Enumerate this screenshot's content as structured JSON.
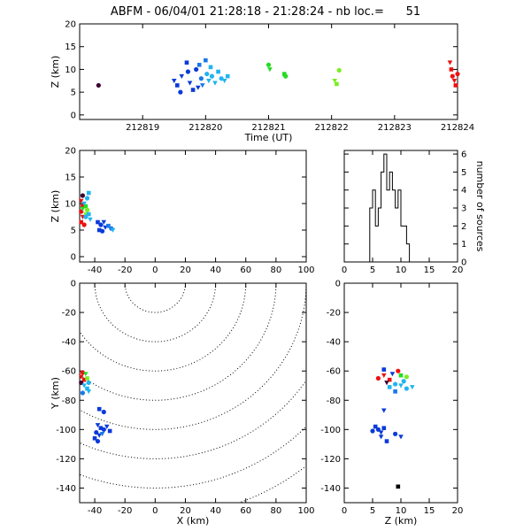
{
  "title": "ABFM - 06/04/01 21:28:18 - 21:28:24 - nb loc.=      51",
  "palette": {
    "purple": "#3a0030",
    "blue": "#0a3ad8",
    "midblue": "#1a78e8",
    "cyan": "#20b4f0",
    "green": "#22dd22",
    "lime": "#7aee22",
    "red": "#ee1010",
    "black": "#000000"
  },
  "chart_data": [
    {
      "id": "time-z",
      "type": "scatter",
      "xlabel": "Time (UT)",
      "ylabel": "Z (km)",
      "xlim": [
        212818,
        212824
      ],
      "ylim": [
        -1,
        20
      ],
      "xticks": [
        212819,
        212820,
        212821,
        212822,
        212823,
        212824
      ],
      "xtick_labels": [
        "212819",
        "212820",
        "212821",
        "212822",
        "212823",
        "212824"
      ],
      "yticks": [
        0,
        5,
        10,
        15,
        20
      ],
      "points": [
        {
          "x": 212818.3,
          "y": 6.5,
          "c": "purple"
        },
        {
          "x": 212819.5,
          "y": 7.5,
          "c": "blue"
        },
        {
          "x": 212819.55,
          "y": 6.5,
          "c": "blue"
        },
        {
          "x": 212819.6,
          "y": 5.0,
          "c": "blue"
        },
        {
          "x": 212819.62,
          "y": 8.5,
          "c": "blue"
        },
        {
          "x": 212819.7,
          "y": 11.5,
          "c": "blue"
        },
        {
          "x": 212819.72,
          "y": 9.5,
          "c": "blue"
        },
        {
          "x": 212819.75,
          "y": 7.0,
          "c": "blue"
        },
        {
          "x": 212819.8,
          "y": 5.5,
          "c": "blue"
        },
        {
          "x": 212819.85,
          "y": 10.0,
          "c": "blue"
        },
        {
          "x": 212819.88,
          "y": 6.0,
          "c": "blue"
        },
        {
          "x": 212819.9,
          "y": 11.0,
          "c": "midblue"
        },
        {
          "x": 212819.93,
          "y": 8.0,
          "c": "midblue"
        },
        {
          "x": 212819.95,
          "y": 6.5,
          "c": "midblue"
        },
        {
          "x": 212820.0,
          "y": 12.0,
          "c": "midblue"
        },
        {
          "x": 212820.02,
          "y": 9.0,
          "c": "cyan"
        },
        {
          "x": 212820.05,
          "y": 7.5,
          "c": "cyan"
        },
        {
          "x": 212820.08,
          "y": 10.5,
          "c": "cyan"
        },
        {
          "x": 212820.1,
          "y": 8.5,
          "c": "cyan"
        },
        {
          "x": 212820.15,
          "y": 7.0,
          "c": "cyan"
        },
        {
          "x": 212820.2,
          "y": 9.5,
          "c": "cyan"
        },
        {
          "x": 212820.25,
          "y": 8.0,
          "c": "cyan"
        },
        {
          "x": 212820.3,
          "y": 7.5,
          "c": "cyan"
        },
        {
          "x": 212820.35,
          "y": 8.5,
          "c": "cyan"
        },
        {
          "x": 212821.0,
          "y": 11.0,
          "c": "green"
        },
        {
          "x": 212821.02,
          "y": 10.0,
          "c": "green"
        },
        {
          "x": 212821.25,
          "y": 9.0,
          "c": "green"
        },
        {
          "x": 212821.27,
          "y": 8.5,
          "c": "green"
        },
        {
          "x": 212822.05,
          "y": 7.5,
          "c": "lime"
        },
        {
          "x": 212822.08,
          "y": 6.8,
          "c": "lime"
        },
        {
          "x": 212822.12,
          "y": 9.8,
          "c": "lime"
        },
        {
          "x": 212823.88,
          "y": 11.5,
          "c": "red"
        },
        {
          "x": 212823.9,
          "y": 10.0,
          "c": "red"
        },
        {
          "x": 212823.92,
          "y": 8.5,
          "c": "red"
        },
        {
          "x": 212823.95,
          "y": 7.5,
          "c": "red"
        },
        {
          "x": 212823.97,
          "y": 6.5,
          "c": "red"
        },
        {
          "x": 212824.0,
          "y": 9.0,
          "c": "red"
        }
      ]
    },
    {
      "id": "x-z",
      "type": "scatter",
      "ylabel": "Z (km)",
      "xlim": [
        -50,
        100
      ],
      "ylim": [
        -1,
        20
      ],
      "xticks": [
        -40,
        -20,
        0,
        20,
        40,
        60,
        80,
        100
      ],
      "yticks": [
        0,
        5,
        10,
        15,
        20
      ],
      "points": [
        {
          "x": -48,
          "y": 11.5,
          "c": "purple"
        },
        {
          "x": -49,
          "y": 10.5,
          "c": "red"
        },
        {
          "x": -48,
          "y": 9.5,
          "c": "red"
        },
        {
          "x": -49,
          "y": 8.5,
          "c": "red"
        },
        {
          "x": -48,
          "y": 7.5,
          "c": "red"
        },
        {
          "x": -49,
          "y": 6.5,
          "c": "red"
        },
        {
          "x": -47,
          "y": 6.0,
          "c": "red"
        },
        {
          "x": -48,
          "y": 9.0,
          "c": "green"
        },
        {
          "x": -46,
          "y": 9.5,
          "c": "green"
        },
        {
          "x": -45,
          "y": 8.8,
          "c": "lime"
        },
        {
          "x": -46,
          "y": 8.0,
          "c": "lime"
        },
        {
          "x": -44,
          "y": 12.0,
          "c": "cyan"
        },
        {
          "x": -45,
          "y": 11.0,
          "c": "cyan"
        },
        {
          "x": -47,
          "y": 10.0,
          "c": "cyan"
        },
        {
          "x": -44,
          "y": 8.0,
          "c": "cyan"
        },
        {
          "x": -46,
          "y": 7.5,
          "c": "cyan"
        },
        {
          "x": -43,
          "y": 7.0,
          "c": "cyan"
        },
        {
          "x": -38,
          "y": 6.5,
          "c": "blue"
        },
        {
          "x": -36,
          "y": 6.0,
          "c": "blue"
        },
        {
          "x": -34,
          "y": 6.5,
          "c": "blue"
        },
        {
          "x": -37,
          "y": 5.0,
          "c": "blue"
        },
        {
          "x": -35,
          "y": 4.8,
          "c": "blue"
        },
        {
          "x": -33,
          "y": 5.5,
          "c": "blue"
        },
        {
          "x": -31,
          "y": 5.8,
          "c": "midblue"
        },
        {
          "x": -29,
          "y": 5.3,
          "c": "midblue"
        },
        {
          "x": -28,
          "y": 5.0,
          "c": "cyan"
        }
      ]
    },
    {
      "id": "histogram",
      "type": "bar",
      "ylabel": "number of sources",
      "xlim": [
        0,
        20
      ],
      "ylim": [
        0,
        6.2
      ],
      "xticks": [
        0,
        5,
        10,
        15,
        20
      ],
      "yticks": [
        0,
        1,
        2,
        3,
        4,
        5,
        6
      ],
      "bin_width": 0.5,
      "bin_starts": [
        4,
        4.5,
        5,
        5.5,
        6,
        6.5,
        7,
        7.5,
        8,
        8.5,
        9,
        9.5,
        10,
        10.5,
        11,
        11.5,
        12,
        12.5
      ],
      "counts": [
        0,
        3,
        4,
        2,
        3,
        5,
        6,
        4,
        5,
        4,
        3,
        4,
        2,
        2,
        1,
        0,
        0,
        0
      ]
    },
    {
      "id": "x-y",
      "type": "scatter",
      "xlabel": "X (km)",
      "ylabel": "Y (km)",
      "xlim": [
        -50,
        100
      ],
      "ylim": [
        -150,
        0
      ],
      "xticks": [
        -40,
        -20,
        0,
        20,
        40,
        60,
        80,
        100
      ],
      "yticks": [
        -140,
        -120,
        -100,
        -80,
        -60,
        -40,
        -20,
        0
      ],
      "range_rings_km": [
        20,
        40,
        60,
        80,
        100,
        120,
        140,
        160
      ],
      "points": [
        {
          "x": -48,
          "y": -61,
          "c": "red"
        },
        {
          "x": -49,
          "y": -64,
          "c": "red"
        },
        {
          "x": -47,
          "y": -66,
          "c": "red"
        },
        {
          "x": -49,
          "y": -68,
          "c": "purple"
        },
        {
          "x": -46,
          "y": -62,
          "c": "green"
        },
        {
          "x": -45,
          "y": -65,
          "c": "lime"
        },
        {
          "x": -44,
          "y": -68,
          "c": "cyan"
        },
        {
          "x": -47,
          "y": -70,
          "c": "cyan"
        },
        {
          "x": -45,
          "y": -72,
          "c": "cyan"
        },
        {
          "x": -48,
          "y": -75,
          "c": "midblue"
        },
        {
          "x": -44,
          "y": -74,
          "c": "cyan"
        },
        {
          "x": -37,
          "y": -86,
          "c": "blue"
        },
        {
          "x": -34,
          "y": -88,
          "c": "blue"
        },
        {
          "x": -38,
          "y": -97,
          "c": "blue"
        },
        {
          "x": -36,
          "y": -99,
          "c": "blue"
        },
        {
          "x": -34,
          "y": -100,
          "c": "blue"
        },
        {
          "x": -32,
          "y": -98,
          "c": "blue"
        },
        {
          "x": -30,
          "y": -101,
          "c": "blue"
        },
        {
          "x": -39,
          "y": -102,
          "c": "blue"
        },
        {
          "x": -37,
          "y": -104,
          "c": "blue"
        },
        {
          "x": -40,
          "y": -106,
          "c": "blue"
        },
        {
          "x": -38,
          "y": -108,
          "c": "blue"
        },
        {
          "x": -35,
          "y": -103,
          "c": "midblue"
        }
      ]
    },
    {
      "id": "z-y",
      "type": "scatter",
      "xlabel": "Z (km)",
      "xlim": [
        0,
        20
      ],
      "ylim": [
        -150,
        0
      ],
      "xticks": [
        0,
        5,
        10,
        15,
        20
      ],
      "yticks": [
        -140,
        -120,
        -100,
        -80,
        -60,
        -40,
        -20,
        0
      ],
      "points": [
        {
          "x": 6,
          "y": -65,
          "c": "red"
        },
        {
          "x": 7,
          "y": -63,
          "c": "red"
        },
        {
          "x": 8,
          "y": -66,
          "c": "red"
        },
        {
          "x": 9.5,
          "y": -60,
          "c": "red"
        },
        {
          "x": 7.5,
          "y": -68,
          "c": "purple"
        },
        {
          "x": 10,
          "y": -63,
          "c": "green"
        },
        {
          "x": 11,
          "y": -64,
          "c": "lime"
        },
        {
          "x": 8.5,
          "y": -62,
          "c": "blue"
        },
        {
          "x": 7,
          "y": -59,
          "c": "blue"
        },
        {
          "x": 9,
          "y": -69,
          "c": "cyan"
        },
        {
          "x": 10,
          "y": -70,
          "c": "cyan"
        },
        {
          "x": 8,
          "y": -71,
          "c": "cyan"
        },
        {
          "x": 11,
          "y": -72,
          "c": "cyan"
        },
        {
          "x": 12,
          "y": -71,
          "c": "cyan"
        },
        {
          "x": 9,
          "y": -74,
          "c": "midblue"
        },
        {
          "x": 10.5,
          "y": -67,
          "c": "cyan"
        },
        {
          "x": 7,
          "y": -87,
          "c": "blue"
        },
        {
          "x": 5.5,
          "y": -98,
          "c": "blue"
        },
        {
          "x": 6,
          "y": -100,
          "c": "blue"
        },
        {
          "x": 6.5,
          "y": -102,
          "c": "blue"
        },
        {
          "x": 7,
          "y": -99,
          "c": "blue"
        },
        {
          "x": 5,
          "y": -101,
          "c": "blue"
        },
        {
          "x": 6.5,
          "y": -105,
          "c": "blue"
        },
        {
          "x": 7.5,
          "y": -108,
          "c": "blue"
        },
        {
          "x": 9,
          "y": -103,
          "c": "blue"
        },
        {
          "x": 10,
          "y": -105,
          "c": "blue"
        },
        {
          "x": 9.5,
          "y": -139,
          "c": "black"
        }
      ]
    }
  ]
}
